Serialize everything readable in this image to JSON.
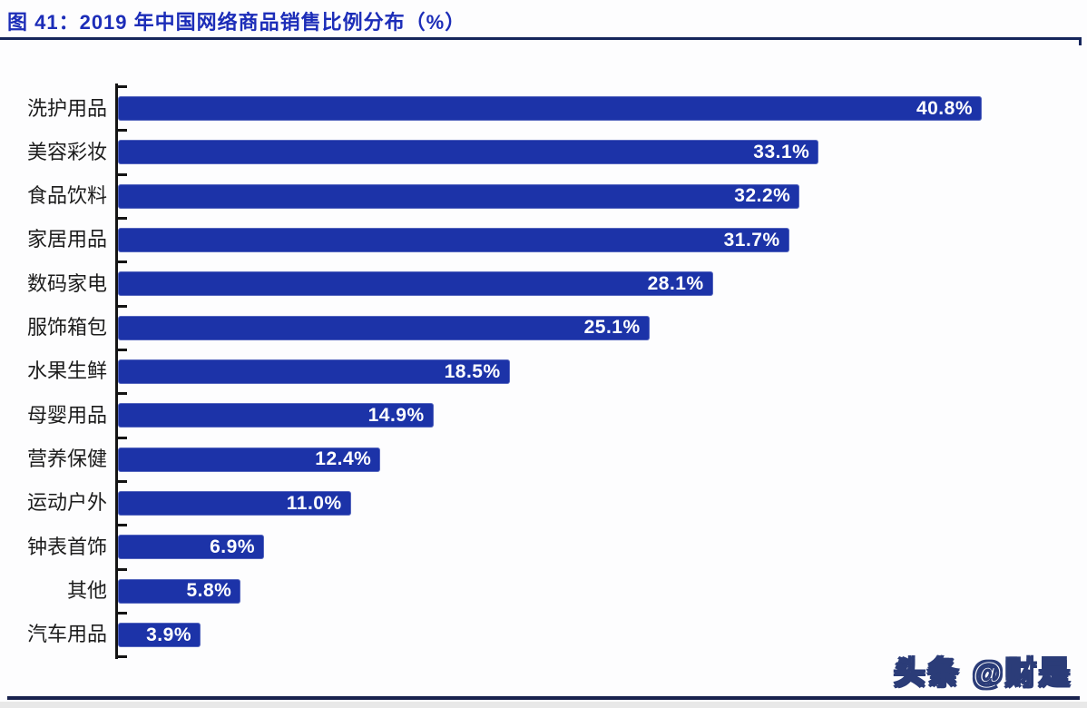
{
  "header": {
    "title": "图 41：2019 年中国网络商品销售比例分布（%）"
  },
  "watermark": "头条 @财是",
  "chart_data": {
    "type": "bar",
    "orientation": "horizontal",
    "title": "2019 年中国网络商品销售比例分布（%）",
    "categories": [
      "洗护用品",
      "美容彩妆",
      "食品饮料",
      "家居用品",
      "数码家电",
      "服饰箱包",
      "水果生鲜",
      "母婴用品",
      "营养保健",
      "运动户外",
      "钟表首饰",
      "其他",
      "汽车用品"
    ],
    "values": [
      40.8,
      33.1,
      32.2,
      31.7,
      28.1,
      25.1,
      18.5,
      14.9,
      12.4,
      11.0,
      6.9,
      5.8,
      3.9
    ],
    "value_labels": [
      "40.8%",
      "33.1%",
      "32.2%",
      "31.7%",
      "28.1%",
      "25.1%",
      "18.5%",
      "14.9%",
      "12.4%",
      "11.0%",
      "6.9%",
      "5.8%",
      "3.9%"
    ],
    "xlabel": "",
    "ylabel": "",
    "xlim": [
      0,
      45.9
    ],
    "grid": false,
    "legend_position": "none",
    "bar_color": "#1c33a8",
    "value_label_color": "#ffffff",
    "axis_color": "#141414"
  },
  "colors": {
    "title_text": "#1c2db8",
    "title_rule": "#16265c",
    "bottom_rule": "#19224e",
    "watermark_fill": "#ffffff",
    "watermark_outline": "#2b3c78",
    "background": "#ffffff"
  }
}
